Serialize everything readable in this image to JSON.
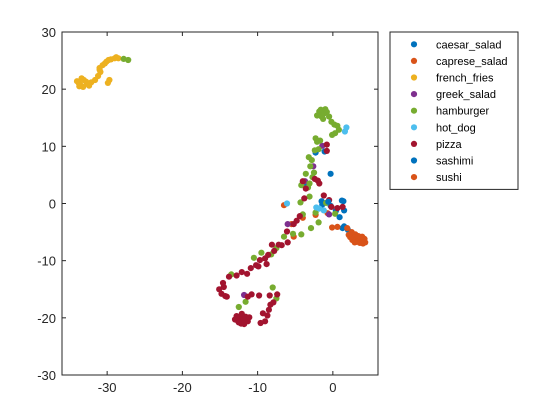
{
  "chart_data": {
    "type": "scatter",
    "title": "",
    "xlabel": "",
    "ylabel": "",
    "xlim": [
      -36,
      6
    ],
    "ylim": [
      -30,
      30
    ],
    "xticks": [
      -30,
      -20,
      -10,
      0
    ],
    "yticks": [
      -30,
      -20,
      -10,
      0,
      10,
      20,
      30
    ],
    "xtick_labels": [
      "-30",
      "-20",
      "-10",
      "0"
    ],
    "ytick_labels": [
      "-30",
      "-20",
      "-10",
      "0",
      "10",
      "20",
      "30"
    ],
    "grid": false,
    "legend_position": "outside-top-right",
    "series": [
      {
        "name": "caesar_salad",
        "color": "#0072BD",
        "points": [
          [
            -1.5,
            0.4
          ],
          [
            -1.4,
            -0.2
          ],
          [
            -0.3,
            -0.4
          ],
          [
            0.4,
            -1.3
          ],
          [
            1.3,
            -4.3
          ],
          [
            1.4,
            0.4
          ],
          [
            1.5,
            -4.0
          ],
          [
            2.0,
            -4.6
          ],
          [
            -2.3,
            8.9
          ],
          [
            -1.1,
            9.1
          ],
          [
            -0.3,
            5.2
          ],
          [
            -3.7,
            3.2
          ],
          [
            1.5,
            -1.2
          ]
        ]
      },
      {
        "name": "caprese_salad",
        "color": "#D95319",
        "points": [
          [
            -6.5,
            -0.3
          ],
          [
            -5.5,
            -3.6
          ],
          [
            -4.0,
            -2.5
          ],
          [
            -5.2,
            -5.8
          ],
          [
            -2.3,
            -2.0
          ],
          [
            -0.7,
            -1.7
          ],
          [
            -0.1,
            -4.2
          ],
          [
            0.6,
            -4.1
          ],
          [
            1.9,
            -4.3
          ],
          [
            2.5,
            -5.0
          ],
          [
            3.0,
            -5.4
          ]
        ]
      },
      {
        "name": "french_fries",
        "color": "#EDB120",
        "points": [
          [
            -33.6,
            20.8
          ],
          [
            -33.1,
            21.6
          ],
          [
            -33.8,
            21.1
          ],
          [
            -33.2,
            20.4
          ],
          [
            -32.6,
            20.9
          ],
          [
            -32.1,
            21.2
          ],
          [
            -31.6,
            21.6
          ],
          [
            -33.4,
            21.9
          ],
          [
            -34.0,
            21.4
          ],
          [
            -33.7,
            20.5
          ],
          [
            -32.8,
            21.3
          ],
          [
            -32.4,
            20.6
          ],
          [
            -31.2,
            22.3
          ],
          [
            -31.0,
            23.4
          ],
          [
            -30.6,
            24.2
          ],
          [
            -30.1,
            24.8
          ],
          [
            -29.5,
            25.2
          ],
          [
            -29.0,
            25.4
          ],
          [
            -28.5,
            25.4
          ],
          [
            -30.3,
            24.5
          ],
          [
            -29.8,
            25.1
          ],
          [
            -31.0,
            23.7
          ],
          [
            -30.9,
            23.0
          ],
          [
            -29.7,
            21.6
          ],
          [
            -29.9,
            21.1
          ],
          [
            -28.8,
            25.6
          ]
        ]
      },
      {
        "name": "greek_salad",
        "color": "#7E2F8E",
        "points": [
          [
            -1.4,
            10.1
          ],
          [
            -2.6,
            6.5
          ],
          [
            -6.0,
            -3.6
          ],
          [
            -0.5,
            -1.9
          ],
          [
            -3.7,
            3.9
          ],
          [
            -11.8,
            -16.0
          ]
        ]
      },
      {
        "name": "hamburger",
        "color": "#77AC30",
        "points": [
          [
            -1.8,
            16.1
          ],
          [
            -1.5,
            15.2
          ],
          [
            -1.2,
            15.7
          ],
          [
            -0.8,
            16.0
          ],
          [
            -0.5,
            15.2
          ],
          [
            -0.2,
            14.3
          ],
          [
            0.2,
            13.8
          ],
          [
            0.6,
            13.6
          ],
          [
            -1.3,
            14.8
          ],
          [
            -2.1,
            15.4
          ],
          [
            -1.6,
            16.4
          ],
          [
            -1.0,
            16.5
          ],
          [
            -0.1,
            12.0
          ],
          [
            0.3,
            12.3
          ],
          [
            0.8,
            12.9
          ],
          [
            -1.7,
            11.0
          ],
          [
            -2.3,
            11.4
          ],
          [
            -2.1,
            10.8
          ],
          [
            -2.4,
            9.3
          ],
          [
            -1.9,
            9.5
          ],
          [
            -3.2,
            8.1
          ],
          [
            -2.8,
            7.6
          ],
          [
            -3.0,
            6.5
          ],
          [
            -3.6,
            5.2
          ],
          [
            -2.5,
            5.4
          ],
          [
            -2.7,
            4.6
          ],
          [
            -3.1,
            3.5
          ],
          [
            -4.2,
            3.2
          ],
          [
            -3.3,
            2.8
          ],
          [
            -3.1,
            1.2
          ],
          [
            -0.9,
            0.1
          ],
          [
            -2.3,
            -1.6
          ],
          [
            -1.9,
            -3.3
          ],
          [
            0.3,
            -1.8
          ],
          [
            -4.3,
            0.2
          ],
          [
            -4.0,
            -1.9
          ],
          [
            -2.9,
            -4.3
          ],
          [
            -5.3,
            -5.3
          ],
          [
            -4.2,
            -5.4
          ],
          [
            -6.5,
            -5.8
          ],
          [
            -7.5,
            -7.8
          ],
          [
            -8.0,
            -14.7
          ],
          [
            -7.5,
            -16.6
          ],
          [
            -11.6,
            -17.2
          ],
          [
            -12.5,
            -18.1
          ],
          [
            -13.5,
            -12.4
          ],
          [
            -10.5,
            -9.5
          ],
          [
            -9.5,
            -8.6
          ],
          [
            -8.2,
            -8.9
          ],
          [
            -27.8,
            25.3
          ],
          [
            -27.2,
            25.1
          ]
        ]
      },
      {
        "name": "hot_dog",
        "color": "#4DBEEE",
        "points": [
          [
            -2.2,
            -0.7
          ],
          [
            -1.8,
            -0.9
          ],
          [
            -1.2,
            -1.2
          ],
          [
            1.6,
            12.6
          ],
          [
            1.8,
            13.3
          ],
          [
            -6.1,
            0.0
          ]
        ]
      },
      {
        "name": "pizza",
        "color": "#A2142F",
        "points": [
          [
            -12.3,
            -20.0
          ],
          [
            -11.9,
            -20.4
          ],
          [
            -12.6,
            -20.6
          ],
          [
            -11.6,
            -19.8
          ],
          [
            -12.8,
            -19.7
          ],
          [
            -12.2,
            -21.0
          ],
          [
            -11.3,
            -20.6
          ],
          [
            -12.1,
            -19.3
          ],
          [
            -13.0,
            -20.3
          ],
          [
            -11.1,
            -19.9
          ],
          [
            -12.5,
            -20.8
          ],
          [
            -11.8,
            -21.1
          ],
          [
            -9.3,
            -19.2
          ],
          [
            -9.0,
            -20.6
          ],
          [
            -9.6,
            -20.9
          ],
          [
            -8.7,
            -19.6
          ],
          [
            -8.5,
            -18.6
          ],
          [
            -8.3,
            -17.7
          ],
          [
            -7.9,
            -17.3
          ],
          [
            -8.4,
            -16.1
          ],
          [
            -7.4,
            -15.9
          ],
          [
            -9.8,
            -16.1
          ],
          [
            -10.8,
            -15.9
          ],
          [
            -11.3,
            -16.3
          ],
          [
            -14.5,
            -14.6
          ],
          [
            -15.1,
            -15.0
          ],
          [
            -14.8,
            -15.8
          ],
          [
            -14.1,
            -16.3
          ],
          [
            -14.6,
            -13.9
          ],
          [
            -13.8,
            -12.8
          ],
          [
            -12.8,
            -12.6
          ],
          [
            -12.1,
            -12.0
          ],
          [
            -11.4,
            -12.3
          ],
          [
            -10.9,
            -11.3
          ],
          [
            -10.2,
            -10.8
          ],
          [
            -9.7,
            -9.9
          ],
          [
            -9.0,
            -9.6
          ],
          [
            -8.6,
            -9.0
          ],
          [
            -8.8,
            -10.6
          ],
          [
            -8.1,
            -7.2
          ],
          [
            -7.8,
            -8.3
          ],
          [
            -7.2,
            -7.2
          ],
          [
            -6.8,
            -7.3
          ],
          [
            -6.0,
            -6.8
          ],
          [
            -6.1,
            -4.9
          ],
          [
            -5.2,
            -3.6
          ],
          [
            -4.8,
            -3.0
          ],
          [
            -4.4,
            -2.2
          ],
          [
            -3.8,
            0.9
          ],
          [
            -3.6,
            2.6
          ],
          [
            -2.4,
            4.3
          ],
          [
            -2.0,
            4.0
          ],
          [
            -1.8,
            3.5
          ],
          [
            -4.0,
            3.9
          ],
          [
            -0.8,
            9.2
          ],
          [
            -0.8,
            10.3
          ],
          [
            -1.2,
            1.4
          ],
          [
            -0.5,
            0.6
          ],
          [
            -0.2,
            -0.6
          ],
          [
            0.6,
            -0.8
          ],
          [
            1.3,
            -0.6
          ],
          [
            -9.9,
            -11.0
          ],
          [
            -14.3,
            -16.2
          ]
        ]
      },
      {
        "name": "sashimi",
        "color": "#0072BD",
        "points": [
          [
            -0.6,
            0.3
          ],
          [
            0.9,
            -2.4
          ],
          [
            1.2,
            0.5
          ]
        ]
      },
      {
        "name": "sushi",
        "color": "#D95319",
        "points": [
          [
            2.8,
            -5.9
          ],
          [
            3.1,
            -6.3
          ],
          [
            3.5,
            -6.1
          ],
          [
            3.9,
            -6.5
          ],
          [
            4.2,
            -6.2
          ],
          [
            3.6,
            -6.9
          ],
          [
            3.2,
            -6.7
          ],
          [
            2.6,
            -6.4
          ],
          [
            3.9,
            -5.8
          ],
          [
            4.3,
            -6.8
          ],
          [
            2.9,
            -6.8
          ],
          [
            3.4,
            -5.7
          ],
          [
            2.3,
            -5.9
          ],
          [
            2.1,
            -5.5
          ],
          [
            4.0,
            -7.0
          ]
        ]
      }
    ]
  }
}
